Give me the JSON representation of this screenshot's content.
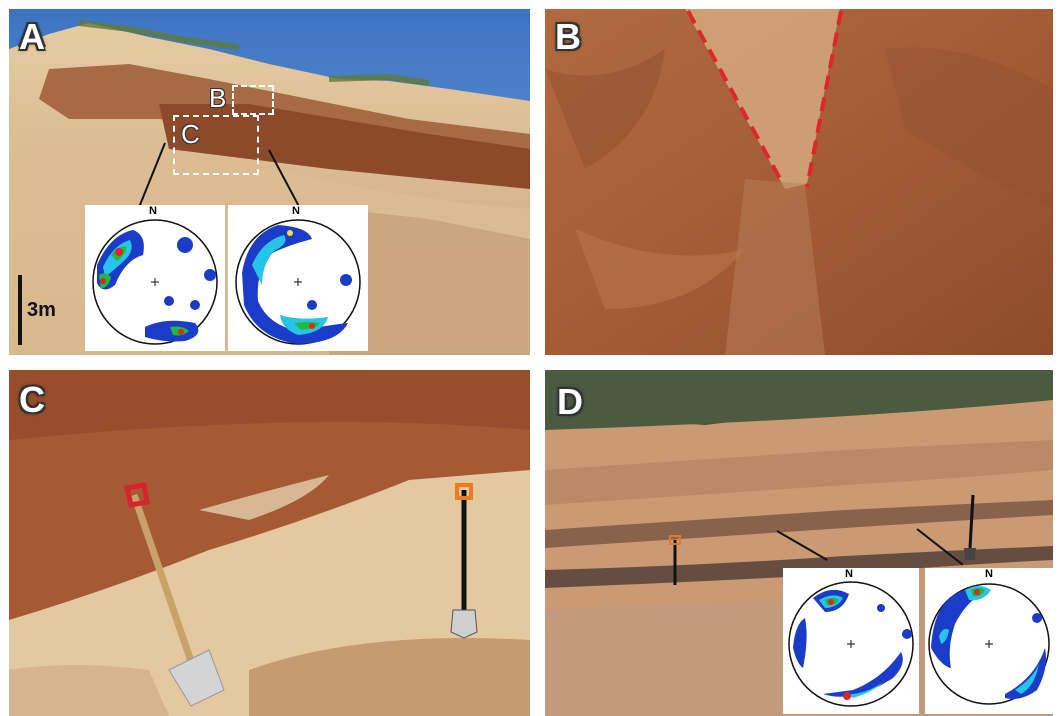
{
  "panels": {
    "a": {
      "label": "A",
      "box_b": "B",
      "box_c": "C",
      "scale": "3m",
      "north_1": "N",
      "north_2": "N"
    },
    "b": {
      "label": "B"
    },
    "c": {
      "label": "C"
    },
    "d": {
      "label": "D",
      "north_1": "N",
      "north_2": "N"
    }
  },
  "colors": {
    "sky": "#4a7fc6",
    "sand": "#e2c79e",
    "soil": "#a35a34",
    "fault_line": "#e0262a",
    "contour_blue": "#1a3cc8",
    "contour_cyan": "#26c4e8",
    "contour_green": "#22b83a",
    "contour_yellow": "#f4e22a",
    "contour_red": "#e0242a"
  }
}
